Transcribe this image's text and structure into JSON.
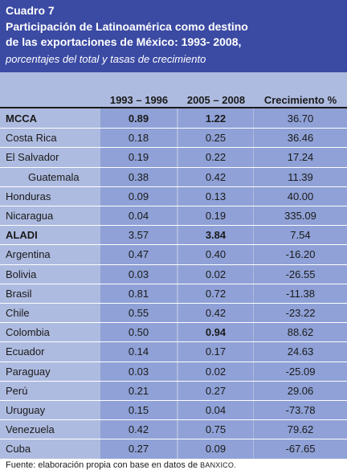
{
  "header": {
    "label": "Cuadro 7",
    "title_line1": "Participación de Latinoamérica como destino",
    "title_line2": "de las exportaciones de México: 1993- 2008,",
    "subtitle": "porcentajes del total y tasas de crecimiento"
  },
  "table": {
    "columns": [
      "1993 – 1996",
      "2005 – 2008",
      "Crecimiento %"
    ],
    "rows": [
      {
        "name": "MCCA",
        "v1": "0.89",
        "v2": "1.22",
        "v3": "36.70",
        "bold_name": true,
        "bold_v1": true,
        "bold_v2": true,
        "indent": false
      },
      {
        "name": "Costa Rica",
        "v1": "0.18",
        "v2": "0.25",
        "v3": "36.46"
      },
      {
        "name": "El Salvador",
        "v1": "0.19",
        "v2": "0.22",
        "v3": "17.24"
      },
      {
        "name": "Guatemala",
        "v1": "0.38",
        "v2": "0.42",
        "v3": "11.39",
        "indent": true
      },
      {
        "name": "Honduras",
        "v1": "0.09",
        "v2": "0.13",
        "v3": "40.00"
      },
      {
        "name": "Nicaragua",
        "v1": "0.04",
        "v2": "0.19",
        "v3": "335.09"
      },
      {
        "name": "ALADI",
        "v1": "3.57",
        "v2": "3.84",
        "v3": "7.54",
        "bold_name": true,
        "bold_v2": true
      },
      {
        "name": "Argentina",
        "v1": "0.47",
        "v2": "0.40",
        "v3": "-16.20"
      },
      {
        "name": "Bolivia",
        "v1": "0.03",
        "v2": "0.02",
        "v3": "-26.55"
      },
      {
        "name": "Brasil",
        "v1": "0.81",
        "v2": "0.72",
        "v3": "-11.38"
      },
      {
        "name": "Chile",
        "v1": "0.55",
        "v2": "0.42",
        "v3": "-23.22"
      },
      {
        "name": "Colombia",
        "v1": "0.50",
        "v2": "0.94",
        "v3": "88.62",
        "bold_v2": true
      },
      {
        "name": "Ecuador",
        "v1": "0.14",
        "v2": "0.17",
        "v3": "24.63"
      },
      {
        "name": "Paraguay",
        "v1": "0.03",
        "v2": "0.02",
        "v3": "-25.09"
      },
      {
        "name": "Perú",
        "v1": "0.21",
        "v2": "0.27",
        "v3": "29.06"
      },
      {
        "name": "Uruguay",
        "v1": "0.15",
        "v2": "0.04",
        "v3": "-73.78"
      },
      {
        "name": "Venezuela",
        "v1": "0.42",
        "v2": "0.75",
        "v3": "79.62"
      },
      {
        "name": "Cuba",
        "v1": "0.27",
        "v2": "0.09",
        "v3": "-67.65"
      }
    ]
  },
  "footer": {
    "text": "Fuente: elaboración propia con base en datos de ",
    "source": "BANXICO."
  },
  "colors": {
    "header_bg": "#3b4aa3",
    "panel_bg": "#aebbe0",
    "column_bg": "#8fa1d6"
  }
}
